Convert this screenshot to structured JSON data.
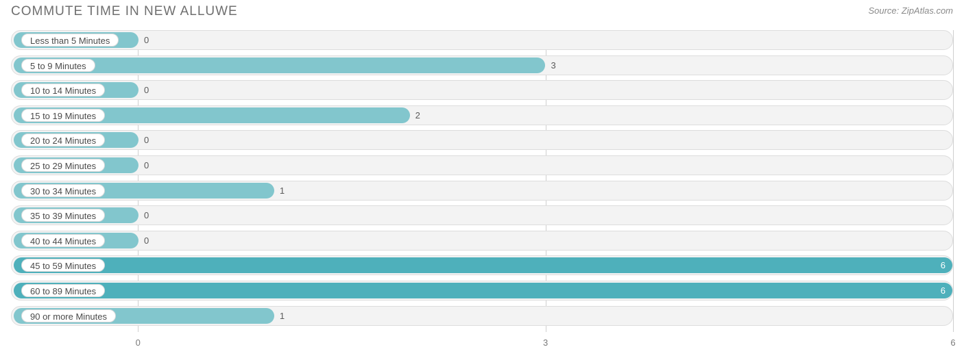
{
  "title": "COMMUTE TIME IN NEW ALLUWE",
  "source": "Source: ZipAtlas.com",
  "chart": {
    "type": "bar-horizontal",
    "background_color": "#ffffff",
    "row_bg_color": "#f3f3f3",
    "row_border_color": "#dddddd",
    "grid_color": "#cfcfcf",
    "label_pill_bg": "#ffffff",
    "label_pill_border": "#d8d8d8",
    "text_color": "#5a5a5a",
    "value_min": -0.935,
    "value_max": 6.0,
    "x_ticks": [
      0,
      3,
      6
    ],
    "bar_color_default": "#82c6cd",
    "bar_color_highlight": "#4eb0bb",
    "categories": [
      {
        "label": "Less than 5 Minutes",
        "value": 0,
        "highlight": false
      },
      {
        "label": "5 to 9 Minutes",
        "value": 3,
        "highlight": false
      },
      {
        "label": "10 to 14 Minutes",
        "value": 0,
        "highlight": false
      },
      {
        "label": "15 to 19 Minutes",
        "value": 2,
        "highlight": false
      },
      {
        "label": "20 to 24 Minutes",
        "value": 0,
        "highlight": false
      },
      {
        "label": "25 to 29 Minutes",
        "value": 0,
        "highlight": false
      },
      {
        "label": "30 to 34 Minutes",
        "value": 1,
        "highlight": false
      },
      {
        "label": "35 to 39 Minutes",
        "value": 0,
        "highlight": false
      },
      {
        "label": "40 to 44 Minutes",
        "value": 0,
        "highlight": false
      },
      {
        "label": "45 to 59 Minutes",
        "value": 6,
        "highlight": true
      },
      {
        "label": "60 to 89 Minutes",
        "value": 6,
        "highlight": true
      },
      {
        "label": "90 or more Minutes",
        "value": 1,
        "highlight": false
      }
    ]
  }
}
